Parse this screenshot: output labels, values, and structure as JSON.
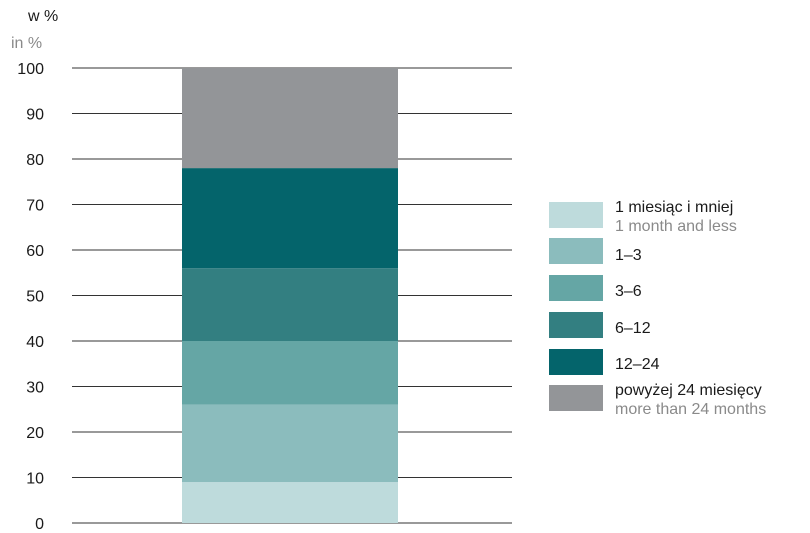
{
  "chart_data": {
    "type": "bar",
    "stacked": true,
    "unit_label": "w %",
    "unit_label_en": "in %",
    "ylim": [
      0,
      100
    ],
    "yticks": [
      0,
      10,
      20,
      30,
      40,
      50,
      60,
      70,
      80,
      90,
      100
    ],
    "grid": true,
    "legend_position": "right",
    "series": [
      {
        "name": "1 miesiąc i mniej",
        "name_en": "1 month and less",
        "value": 9,
        "color": "#bedbdc"
      },
      {
        "name": "1–3",
        "name_en": "",
        "value": 17,
        "color": "#8bbcbd"
      },
      {
        "name": "3–6",
        "name_en": "",
        "value": 14,
        "color": "#65a6a5"
      },
      {
        "name": "6–12",
        "name_en": "",
        "value": 16,
        "color": "#337f81"
      },
      {
        "name": "12–24",
        "name_en": "",
        "value": 22,
        "color": "#04646b"
      },
      {
        "name": "powyżej 24 miesięcy",
        "name_en": "more than 24 months",
        "value": 22,
        "color": "#939598"
      }
    ]
  }
}
